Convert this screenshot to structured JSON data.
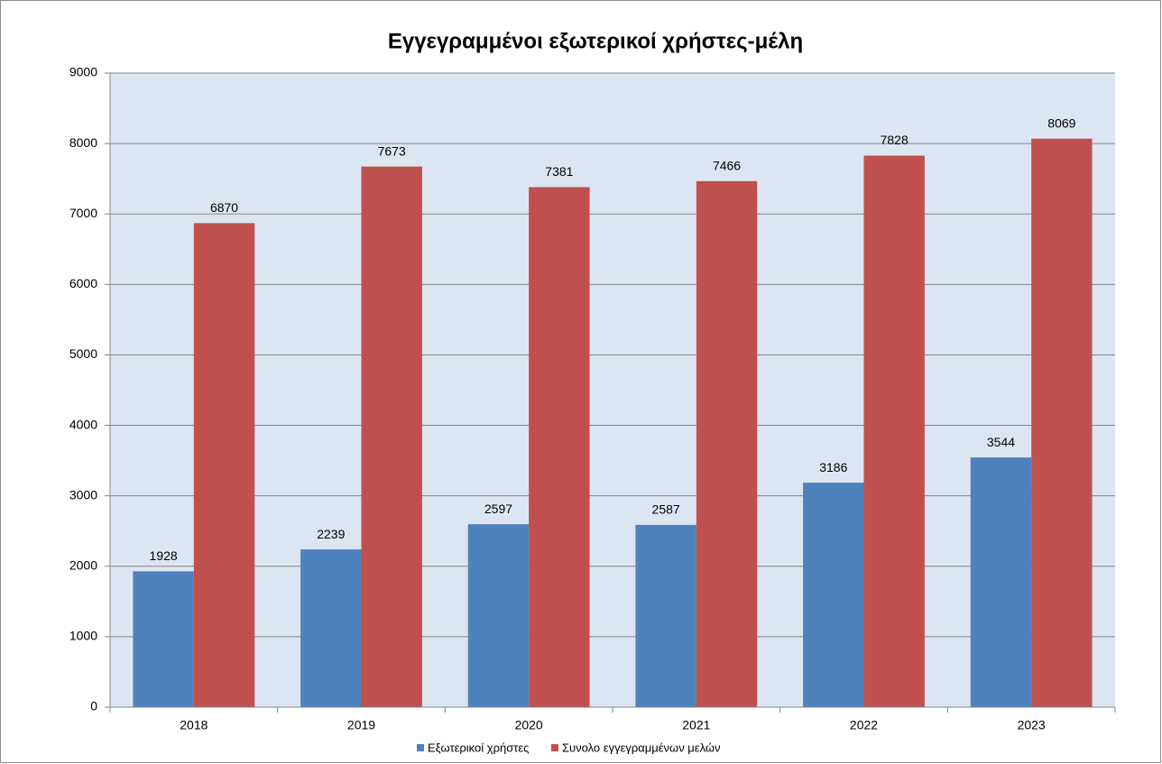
{
  "chart_data": {
    "type": "bar",
    "title": "Εγγεγραμμένοι εξωτερικοί χρήστες-μέλη",
    "categories": [
      "2018",
      "2019",
      "2020",
      "2021",
      "2022",
      "2023"
    ],
    "series": [
      {
        "name": "Εξωτερικοί χρήστες",
        "color": "#4f81bd",
        "values": [
          1928,
          2239,
          2597,
          2587,
          3186,
          3544
        ]
      },
      {
        "name": "Συνολο εγγεγραμμένων μελών",
        "color": "#c0504d",
        "values": [
          6870,
          7673,
          7381,
          7466,
          7828,
          8069
        ]
      }
    ],
    "ylim": [
      0,
      9000
    ],
    "yticks": [
      0,
      1000,
      2000,
      3000,
      4000,
      5000,
      6000,
      7000,
      8000,
      9000
    ],
    "grid": true,
    "legend": "bottom"
  }
}
